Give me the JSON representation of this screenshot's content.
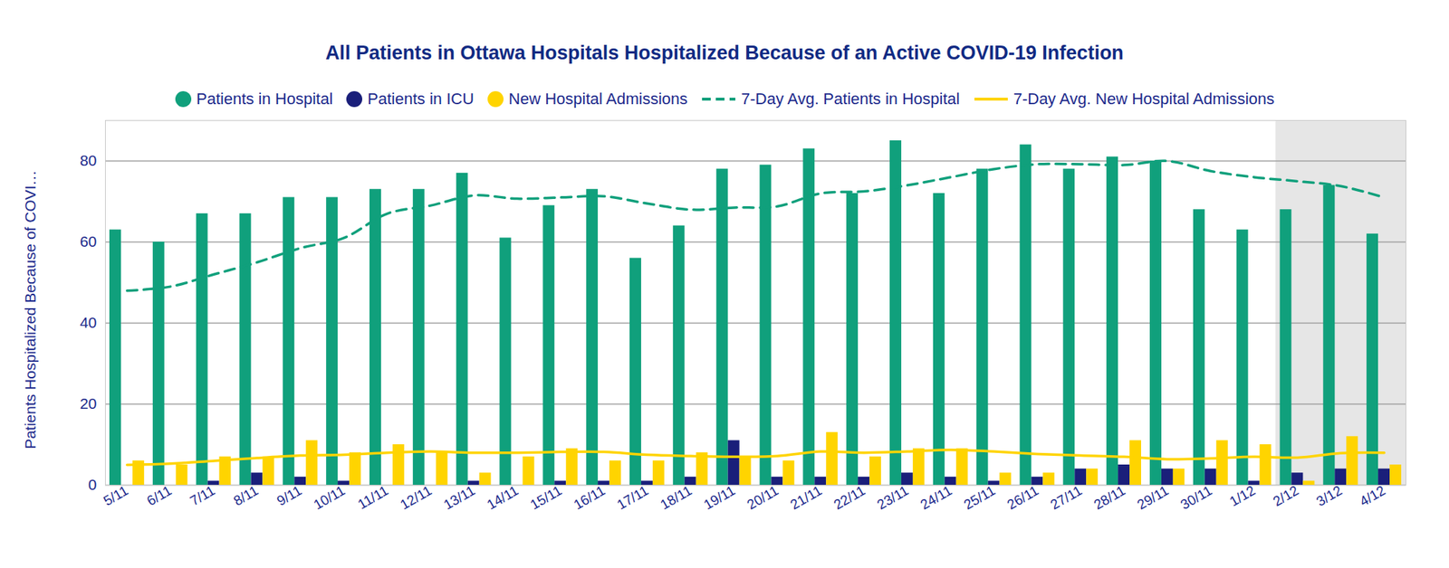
{
  "chart_data": {
    "type": "bar",
    "title": "All Patients in Ottawa Hospitals Hospitalized Because of an Active COVID-19 Infection",
    "y_label": "Patients Hospitalized Because of COVI…",
    "categories": [
      "5/11",
      "6/11",
      "7/11",
      "8/11",
      "9/11",
      "10/11",
      "11/11",
      "12/11",
      "13/11",
      "14/11",
      "15/11",
      "16/11",
      "17/11",
      "18/11",
      "19/11",
      "20/11",
      "21/11",
      "22/11",
      "23/11",
      "24/11",
      "25/11",
      "26/11",
      "27/11",
      "28/11",
      "29/11",
      "30/11",
      "1/12",
      "2/12",
      "3/12",
      "4/12"
    ],
    "series": [
      {
        "name": "Patients in Hospital",
        "type": "bar",
        "color": "#10a07c",
        "values": [
          63,
          60,
          67,
          67,
          71,
          71,
          73,
          73,
          77,
          61,
          69,
          73,
          56,
          64,
          78,
          79,
          83,
          72,
          85,
          72,
          78,
          84,
          78,
          81,
          80,
          68,
          63,
          68,
          74,
          62
        ]
      },
      {
        "name": "Patients in ICU",
        "type": "bar",
        "color": "#1a1f7a",
        "values": [
          0,
          0,
          1,
          3,
          2,
          1,
          0,
          0,
          1,
          0,
          1,
          1,
          1,
          2,
          11,
          2,
          2,
          2,
          3,
          2,
          1,
          2,
          4,
          5,
          4,
          4,
          1,
          3,
          4,
          4
        ]
      },
      {
        "name": "New Hospital Admissions",
        "type": "bar",
        "color": "#ffd400",
        "values": [
          6,
          5,
          7,
          7,
          11,
          8,
          10,
          8,
          3,
          7,
          9,
          6,
          6,
          8,
          7,
          6,
          13,
          7,
          9,
          9,
          3,
          3,
          4,
          11,
          4,
          11,
          10,
          1,
          12,
          5
        ]
      },
      {
        "name": "7-Day Avg. Patients in Hospital",
        "type": "line",
        "line_style": "dashed",
        "color": "#10a07c",
        "values": [
          48,
          49,
          52,
          55,
          58.5,
          61,
          67,
          69,
          71.5,
          70.7,
          71,
          71.3,
          69.5,
          68,
          68.5,
          68.8,
          72,
          72.5,
          74,
          76,
          78,
          79.2,
          79.2,
          79,
          80,
          77.5,
          76,
          75,
          73.8,
          71
        ]
      },
      {
        "name": "7-Day Avg. New Hospital Admissions",
        "type": "line",
        "line_style": "solid",
        "color": "#ffd400",
        "values": [
          5,
          5.3,
          6,
          6.7,
          7.3,
          7.5,
          8,
          8.3,
          8,
          8,
          8.2,
          8.2,
          7.5,
          7.2,
          7,
          7.2,
          8.3,
          8,
          8.3,
          8.7,
          8.3,
          7.7,
          7.3,
          7,
          6.4,
          6.6,
          7,
          6.8,
          7.9,
          8
        ]
      }
    ],
    "highlight": [
      "2/12",
      "4/12"
    ],
    "ylim": [
      0,
      90
    ],
    "yticks": [
      0,
      20,
      40,
      60,
      80
    ],
    "grid": true,
    "legend": "top"
  }
}
